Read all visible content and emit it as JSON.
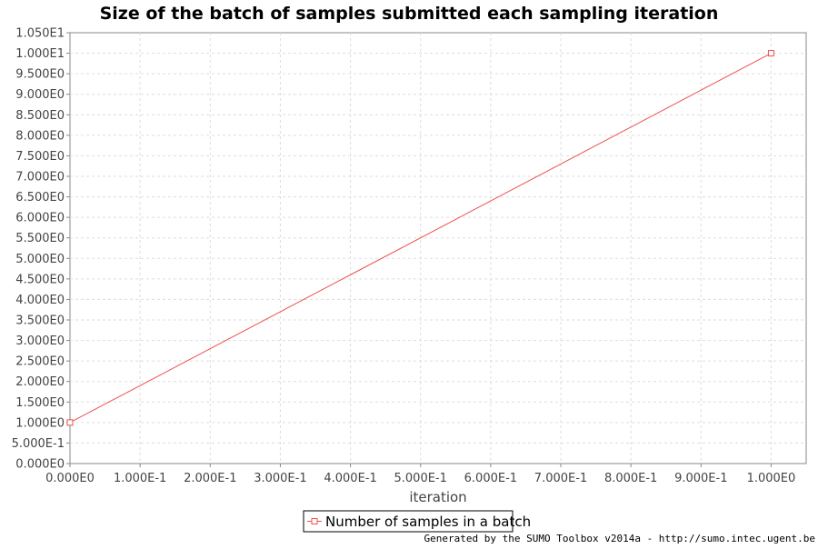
{
  "chart_data": {
    "type": "line",
    "title": "Size of the batch of samples submitted each sampling iteration",
    "xlabel": "iteration",
    "ylabel": "",
    "xlim": [
      0,
      1.05
    ],
    "ylim": [
      0,
      10.5
    ],
    "x_ticks": [
      0,
      0.1,
      0.2,
      0.3,
      0.4,
      0.5,
      0.6,
      0.7,
      0.8,
      0.9,
      1.0
    ],
    "x_tick_labels": [
      "0.000E0",
      "1.000E-1",
      "2.000E-1",
      "3.000E-1",
      "4.000E-1",
      "5.000E-1",
      "6.000E-1",
      "7.000E-1",
      "8.000E-1",
      "9.000E-1",
      "1.000E0"
    ],
    "y_ticks": [
      0,
      0.5,
      1,
      1.5,
      2,
      2.5,
      3,
      3.5,
      4,
      4.5,
      5,
      5.5,
      6,
      6.5,
      7,
      7.5,
      8,
      8.5,
      9,
      9.5,
      10,
      10.5
    ],
    "y_tick_labels": [
      "0.000E0",
      "5.000E-1",
      "1.000E0",
      "1.500E0",
      "2.000E0",
      "2.500E0",
      "3.000E0",
      "3.500E0",
      "4.000E0",
      "4.500E0",
      "5.000E0",
      "5.500E0",
      "6.000E0",
      "6.500E0",
      "7.000E0",
      "7.500E0",
      "8.000E0",
      "8.500E0",
      "9.000E0",
      "9.500E0",
      "1.000E1",
      "1.050E1"
    ],
    "grid": true,
    "legend_position": "bottom-center",
    "series": [
      {
        "name": "Number of samples in a batch",
        "color": "#f05050",
        "marker": "square",
        "points": [
          {
            "x": 0,
            "y": 1
          },
          {
            "x": 1,
            "y": 10
          }
        ]
      }
    ]
  },
  "footer": {
    "credit": "Generated by the SUMO Toolbox v2014a - http://sumo.intec.ugent.be"
  }
}
